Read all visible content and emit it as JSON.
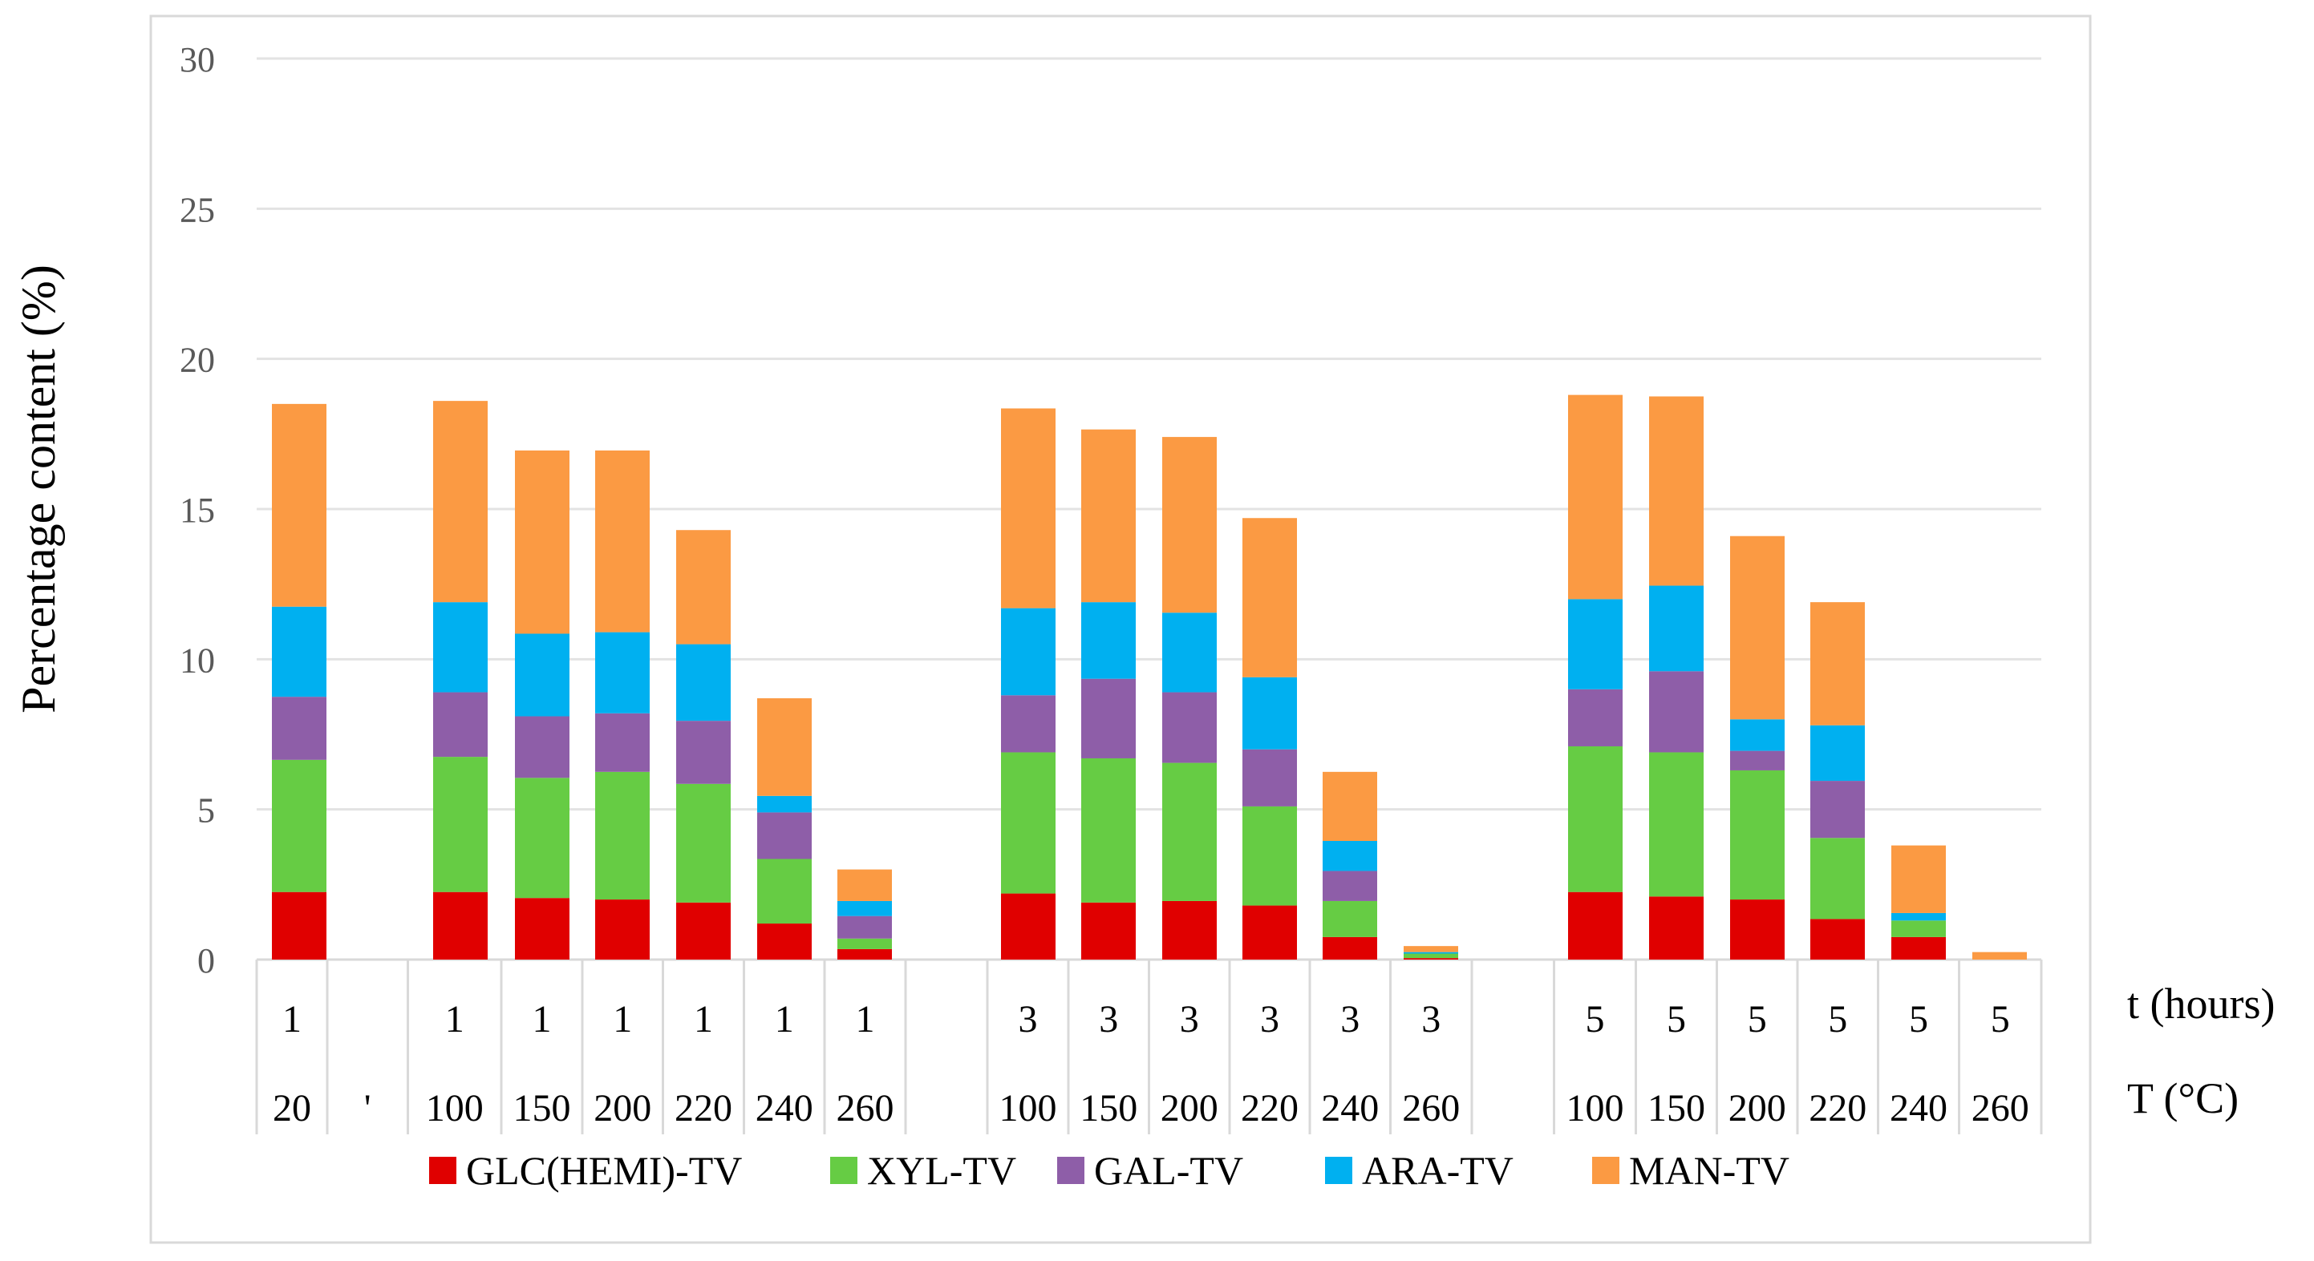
{
  "chart_data": {
    "type": "bar",
    "stacked": true,
    "title": "",
    "ylabel": "Percentage content (%)",
    "ylim": [
      0,
      30
    ],
    "yticks": [
      0,
      5,
      10,
      15,
      20,
      25,
      30
    ],
    "grid": true,
    "legend_position": "bottom",
    "row_labels": [
      "t (hours)",
      "T (°C)"
    ],
    "categories": [
      {
        "t": "1",
        "T": "20"
      },
      {
        "t": "",
        "T": "'"
      },
      {
        "t": "1",
        "T": "100"
      },
      {
        "t": "1",
        "T": "150"
      },
      {
        "t": "1",
        "T": "200"
      },
      {
        "t": "1",
        "T": "220"
      },
      {
        "t": "1",
        "T": "240"
      },
      {
        "t": "1",
        "T": "260"
      },
      {
        "t": "",
        "T": ""
      },
      {
        "t": "3",
        "T": "100"
      },
      {
        "t": "3",
        "T": "150"
      },
      {
        "t": "3",
        "T": "200"
      },
      {
        "t": "3",
        "T": "220"
      },
      {
        "t": "3",
        "T": "240"
      },
      {
        "t": "3",
        "T": "260"
      },
      {
        "t": "",
        "T": ""
      },
      {
        "t": "5",
        "T": "100"
      },
      {
        "t": "5",
        "T": "150"
      },
      {
        "t": "5",
        "T": "200"
      },
      {
        "t": "5",
        "T": "220"
      },
      {
        "t": "5",
        "T": "240"
      },
      {
        "t": "5",
        "T": "260"
      }
    ],
    "series": [
      {
        "name": "GLC(HEMI)-TV",
        "color": "#e00000",
        "values": [
          2.25,
          null,
          2.25,
          2.05,
          2.0,
          1.9,
          1.2,
          0.35,
          null,
          2.2,
          1.9,
          1.95,
          1.8,
          0.75,
          0.05,
          null,
          2.25,
          2.1,
          2.0,
          1.35,
          0.75,
          0.0
        ]
      },
      {
        "name": "XYL-TV",
        "color": "#66cc44",
        "values": [
          4.4,
          null,
          4.5,
          4.0,
          4.25,
          3.95,
          2.15,
          0.35,
          null,
          4.7,
          4.8,
          4.6,
          3.3,
          1.2,
          0.15,
          null,
          4.85,
          4.8,
          4.3,
          2.7,
          0.55,
          0.0
        ]
      },
      {
        "name": "GAL-TV",
        "color": "#8e5ea8",
        "values": [
          2.1,
          null,
          2.15,
          2.05,
          1.95,
          2.1,
          1.55,
          0.75,
          null,
          1.9,
          2.65,
          2.35,
          1.9,
          1.0,
          0.0,
          null,
          1.9,
          2.7,
          0.65,
          1.9,
          0.0,
          0.0
        ]
      },
      {
        "name": "ARA-TV",
        "color": "#00b0f0",
        "values": [
          3.0,
          null,
          3.0,
          2.75,
          2.7,
          2.55,
          0.55,
          0.5,
          null,
          2.9,
          2.55,
          2.65,
          2.4,
          1.0,
          0.05,
          null,
          3.0,
          2.85,
          1.05,
          1.85,
          0.25,
          0.0
        ]
      },
      {
        "name": "MAN-TV",
        "color": "#fb9a43",
        "values": [
          6.75,
          null,
          6.7,
          6.1,
          6.05,
          3.8,
          3.25,
          1.05,
          null,
          6.65,
          5.75,
          5.85,
          5.3,
          2.3,
          0.2,
          null,
          6.8,
          6.3,
          6.1,
          4.1,
          2.25,
          0.25
        ]
      }
    ]
  }
}
